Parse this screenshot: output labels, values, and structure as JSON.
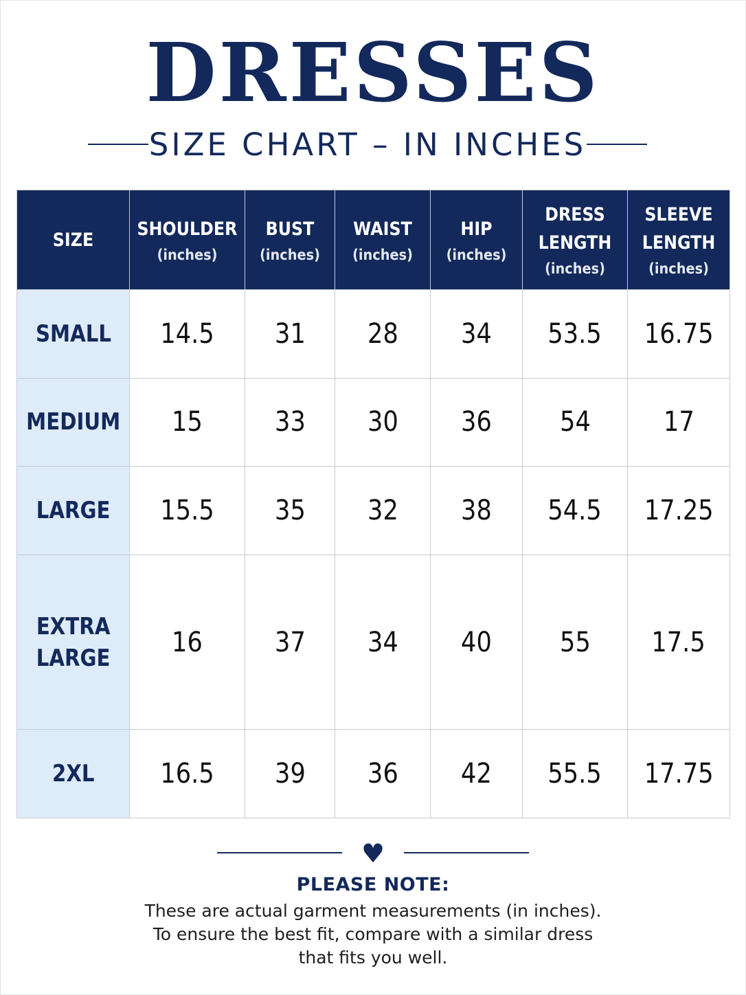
{
  "header": {
    "title": "DRESSES",
    "subtitle": "SIZE CHART – IN INCHES"
  },
  "table": {
    "columns": [
      {
        "name": "SIZE",
        "unit": ""
      },
      {
        "name": "SHOULDER",
        "unit": "(inches)"
      },
      {
        "name": "BUST",
        "unit": "(inches)"
      },
      {
        "name": "WAIST",
        "unit": "(inches)"
      },
      {
        "name": "HIP",
        "unit": "(inches)"
      },
      {
        "name": "DRESS\nLENGTH",
        "unit": "(inches)"
      },
      {
        "name": "SLEEVE\nLENGTH",
        "unit": "(inches)"
      }
    ],
    "rows": [
      {
        "size": "SMALL",
        "values": [
          "14.5",
          "31",
          "28",
          "34",
          "53.5",
          "16.75"
        ]
      },
      {
        "size": "MEDIUM",
        "values": [
          "15",
          "33",
          "30",
          "36",
          "54",
          "17"
        ]
      },
      {
        "size": "LARGE",
        "values": [
          "15.5",
          "35",
          "32",
          "38",
          "54.5",
          "17.25"
        ]
      },
      {
        "size": "EXTRA\nLARGE",
        "values": [
          "16",
          "37",
          "34",
          "40",
          "55",
          "17.5"
        ]
      },
      {
        "size": "2XL",
        "values": [
          "16.5",
          "39",
          "36",
          "42",
          "55.5",
          "17.75"
        ]
      }
    ]
  },
  "divider": {
    "icon": "heart-icon",
    "glyph": "♥"
  },
  "note": {
    "title": "PLEASE NOTE:",
    "lines": [
      "These are actual garment measurements (in inches).",
      "To ensure the best fit, compare with a similar dress",
      "that fits you well."
    ]
  },
  "colors": {
    "navy": "#13295b",
    "size_column_bg": "#deebf8",
    "grid": "#c9ccd3"
  }
}
